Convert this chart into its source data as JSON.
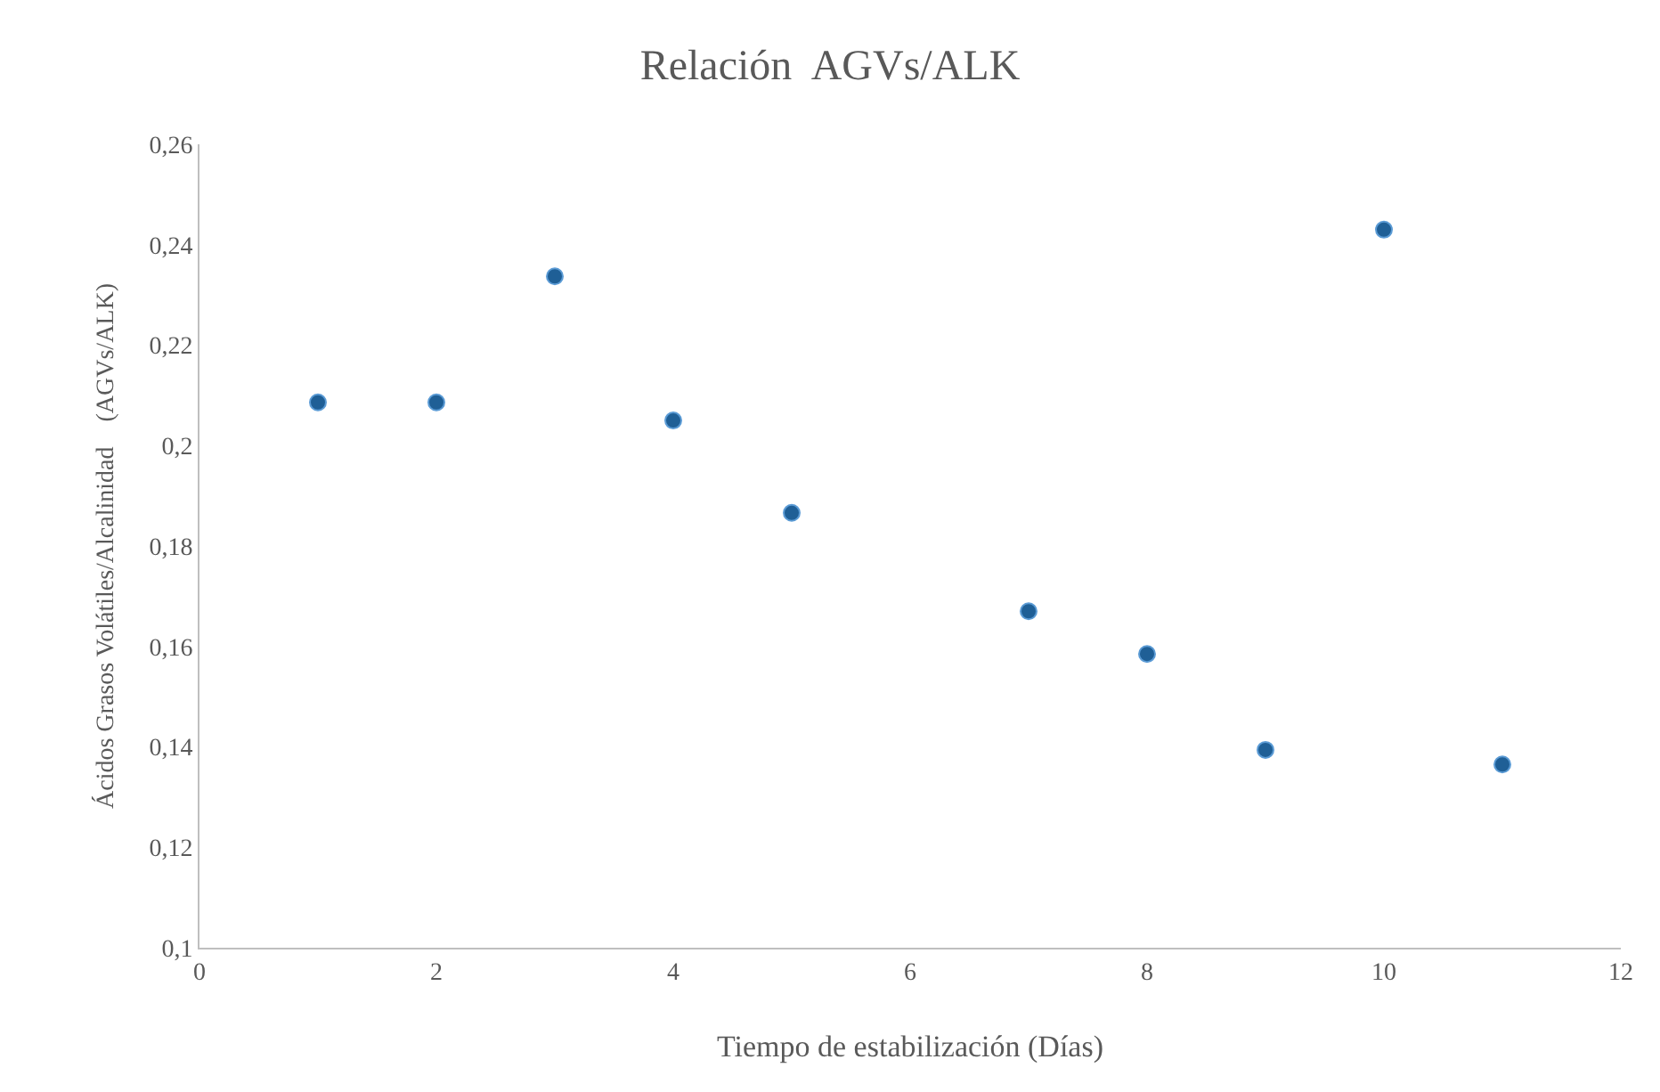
{
  "chart_data": {
    "type": "scatter",
    "title": "Relación  AGVs/ALK",
    "xlabel": "Tiempo de estabilización (Días)",
    "ylabel": "Ácidos Grasos Volátiles/Alcalinidad    (AGVs/ALK)",
    "x": [
      1,
      2,
      3,
      4,
      5,
      7,
      8,
      9,
      10,
      11
    ],
    "values": [
      0.2086,
      0.2086,
      0.2337,
      0.205,
      0.1866,
      0.167,
      0.1585,
      0.1394,
      0.243,
      0.1365
    ],
    "color": "#1f5f96",
    "marker": "circle",
    "grid": false,
    "xlim": [
      0,
      12
    ],
    "xticks": [
      0,
      2,
      4,
      6,
      8,
      10,
      12
    ],
    "ylim": [
      0.1,
      0.26
    ],
    "yticks": [
      {
        "value": 0.1,
        "label": "0,1"
      },
      {
        "value": 0.12,
        "label": "0,12"
      },
      {
        "value": 0.14,
        "label": "0,14"
      },
      {
        "value": 0.16,
        "label": "0,16"
      },
      {
        "value": 0.18,
        "label": "0,18"
      },
      {
        "value": 0.2,
        "label": "0,2"
      },
      {
        "value": 0.22,
        "label": "0,22"
      },
      {
        "value": 0.24,
        "label": "0,24"
      },
      {
        "value": 0.26,
        "label": "0,26"
      }
    ]
  }
}
